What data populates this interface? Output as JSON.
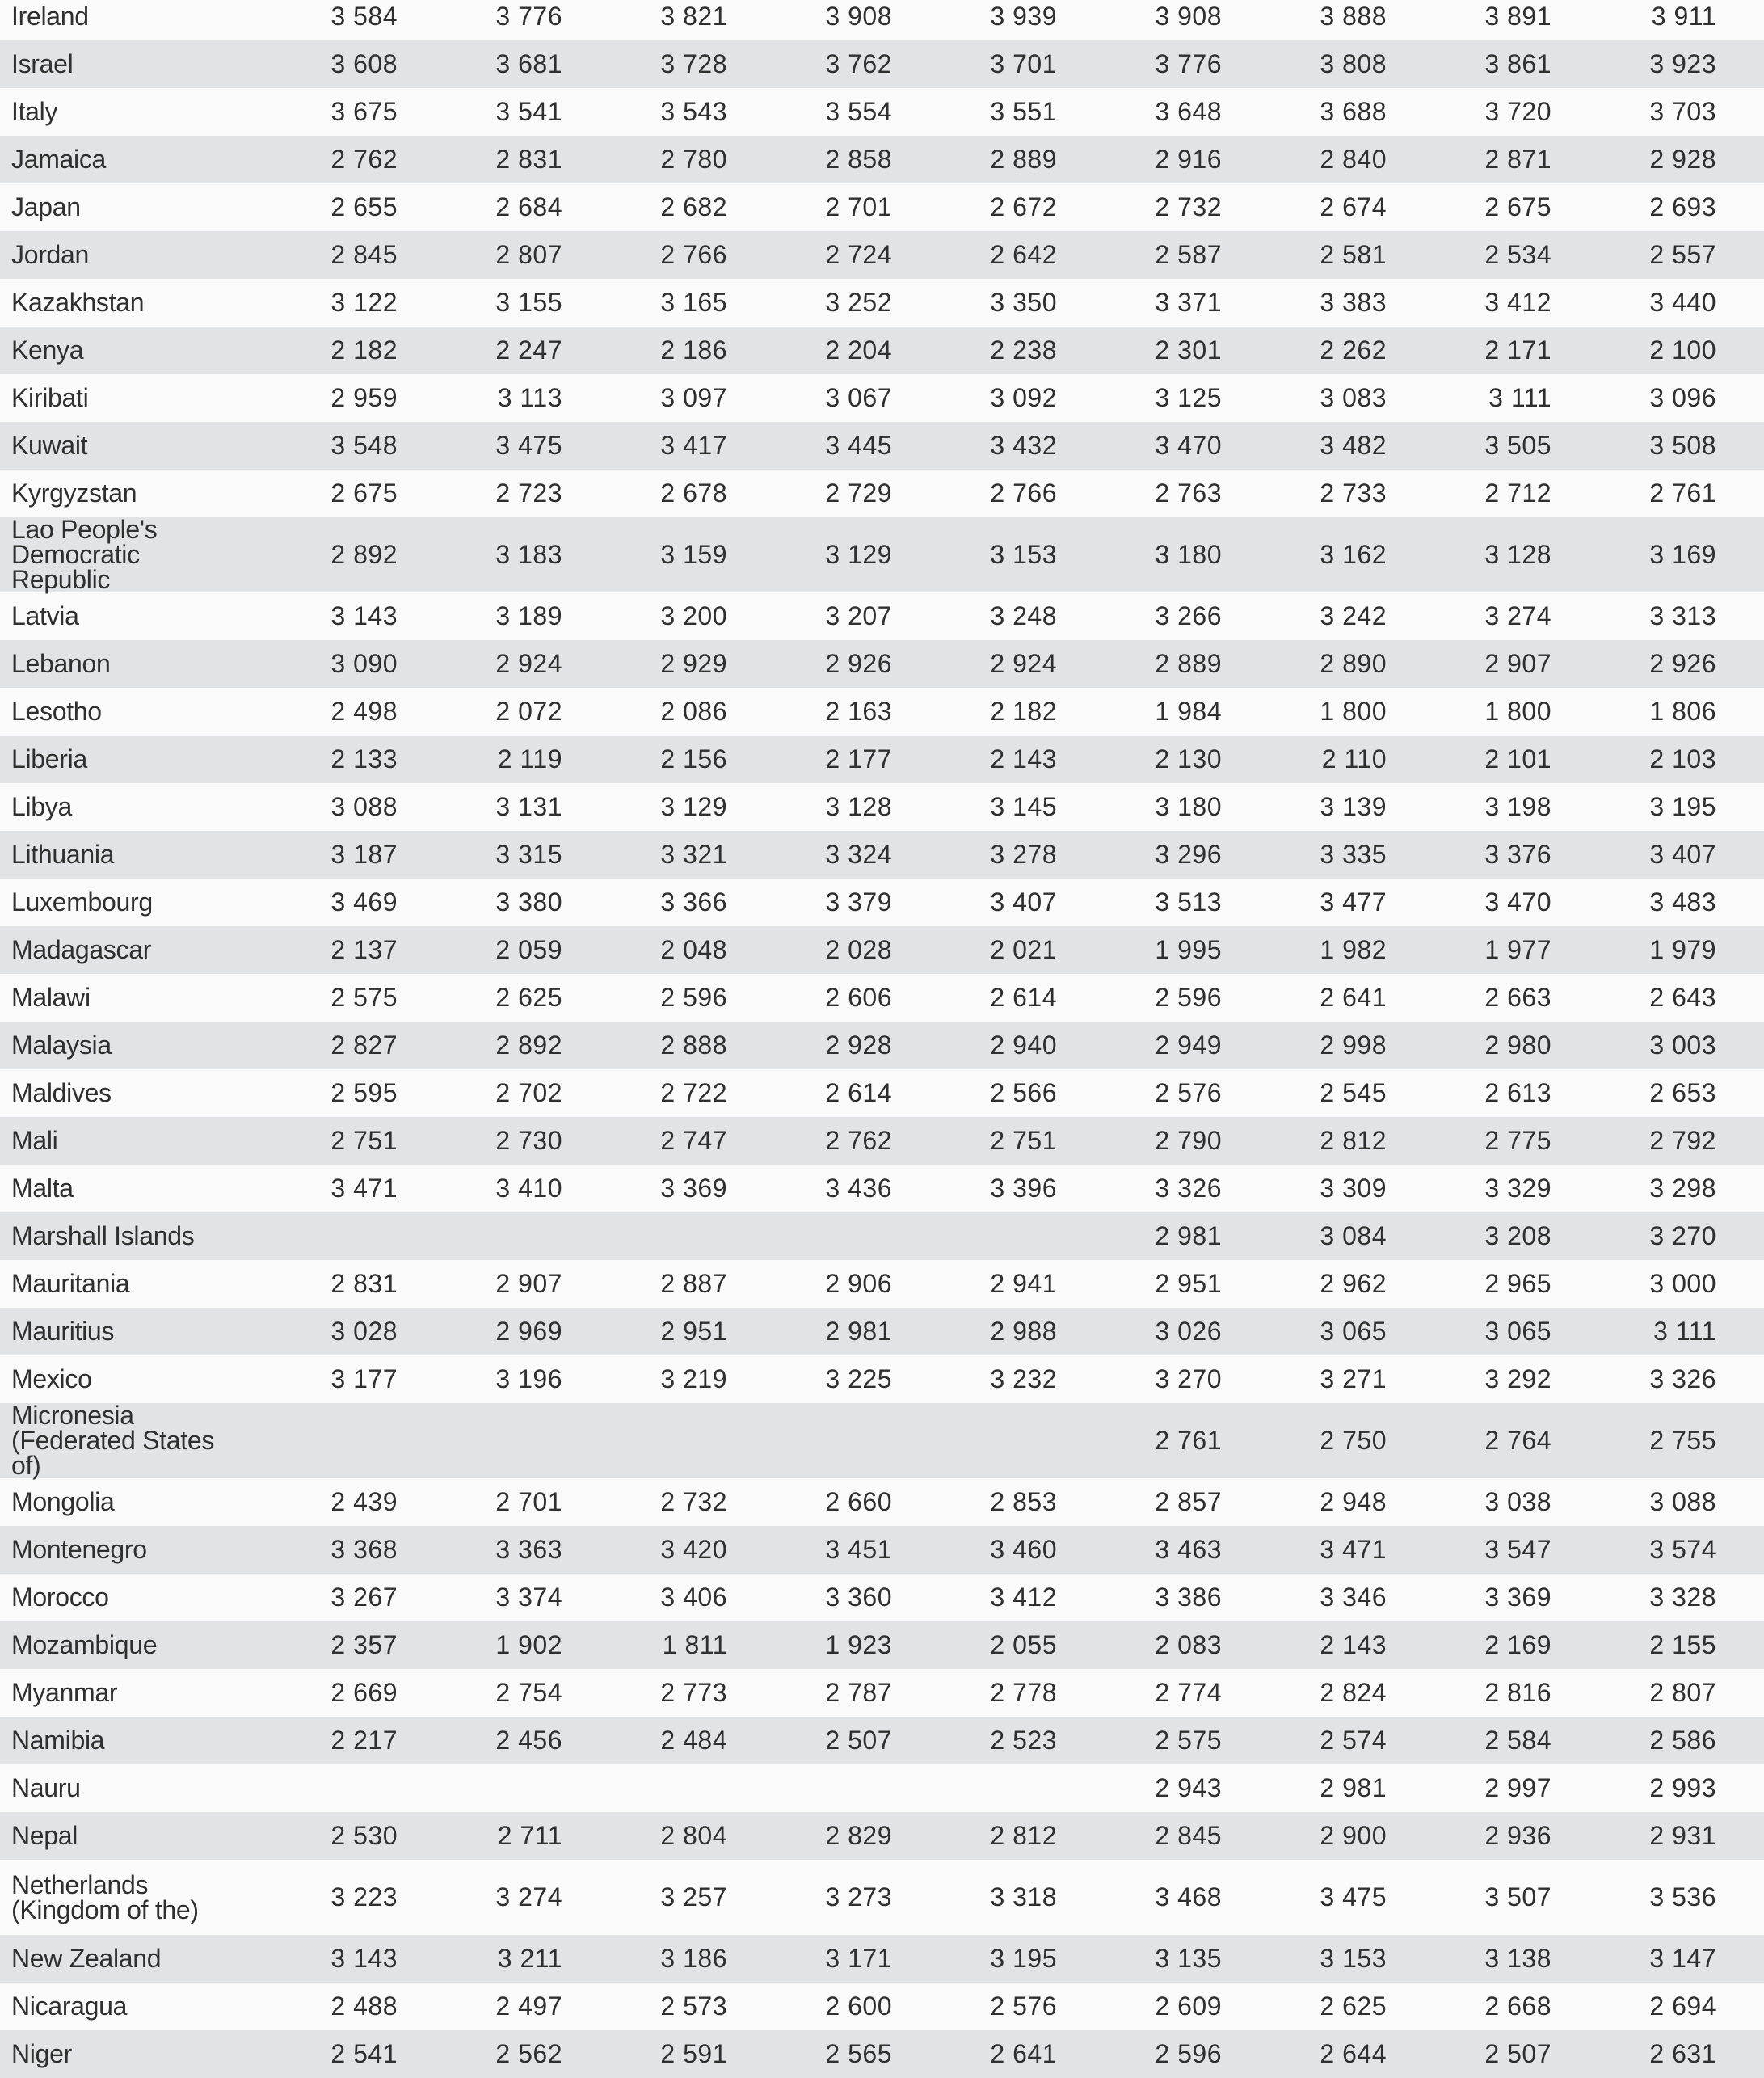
{
  "rows": [
    {
      "name": "Ireland",
      "values": [
        "3 584",
        "3 776",
        "3 821",
        "3 908",
        "3 939",
        "3 908",
        "3 888",
        "3 891",
        "3 911"
      ]
    },
    {
      "name": "Israel",
      "values": [
        "3 608",
        "3 681",
        "3 728",
        "3 762",
        "3 701",
        "3 776",
        "3 808",
        "3 861",
        "3 923"
      ]
    },
    {
      "name": "Italy",
      "values": [
        "3 675",
        "3 541",
        "3 543",
        "3 554",
        "3 551",
        "3 648",
        "3 688",
        "3 720",
        "3 703"
      ]
    },
    {
      "name": "Jamaica",
      "values": [
        "2 762",
        "2 831",
        "2 780",
        "2 858",
        "2 889",
        "2 916",
        "2 840",
        "2 871",
        "2 928"
      ]
    },
    {
      "name": "Japan",
      "values": [
        "2 655",
        "2 684",
        "2 682",
        "2 701",
        "2 672",
        "2 732",
        "2 674",
        "2 675",
        "2 693"
      ]
    },
    {
      "name": "Jordan",
      "values": [
        "2 845",
        "2 807",
        "2 766",
        "2 724",
        "2 642",
        "2 587",
        "2 581",
        "2 534",
        "2 557"
      ]
    },
    {
      "name": "Kazakhstan",
      "values": [
        "3 122",
        "3 155",
        "3 165",
        "3 252",
        "3 350",
        "3 371",
        "3 383",
        "3 412",
        "3 440"
      ]
    },
    {
      "name": "Kenya",
      "values": [
        "2 182",
        "2 247",
        "2 186",
        "2 204",
        "2 238",
        "2 301",
        "2 262",
        "2 171",
        "2 100"
      ]
    },
    {
      "name": "Kiribati",
      "values": [
        "2 959",
        "3 113",
        "3 097",
        "3 067",
        "3 092",
        "3 125",
        "3 083",
        "3 111",
        "3 096"
      ]
    },
    {
      "name": "Kuwait",
      "values": [
        "3 548",
        "3 475",
        "3 417",
        "3 445",
        "3 432",
        "3 470",
        "3 482",
        "3 505",
        "3 508"
      ]
    },
    {
      "name": "Kyrgyzstan",
      "values": [
        "2 675",
        "2 723",
        "2 678",
        "2 729",
        "2 766",
        "2 763",
        "2 733",
        "2 712",
        "2 761"
      ]
    },
    {
      "name": "Lao People's Democratic Republic",
      "tall": true,
      "values": [
        "2 892",
        "3 183",
        "3 159",
        "3 129",
        "3 153",
        "3 180",
        "3 162",
        "3 128",
        "3 169"
      ]
    },
    {
      "name": "Latvia",
      "values": [
        "3 143",
        "3 189",
        "3 200",
        "3 207",
        "3 248",
        "3 266",
        "3 242",
        "3 274",
        "3 313"
      ]
    },
    {
      "name": "Lebanon",
      "values": [
        "3 090",
        "2 924",
        "2 929",
        "2 926",
        "2 924",
        "2 889",
        "2 890",
        "2 907",
        "2 926"
      ]
    },
    {
      "name": "Lesotho",
      "values": [
        "2 498",
        "2 072",
        "2 086",
        "2 163",
        "2 182",
        "1 984",
        "1 800",
        "1 800",
        "1 806"
      ]
    },
    {
      "name": "Liberia",
      "values": [
        "2 133",
        "2 119",
        "2 156",
        "2 177",
        "2 143",
        "2 130",
        "2 110",
        "2 101",
        "2 103"
      ]
    },
    {
      "name": "Libya",
      "values": [
        "3 088",
        "3 131",
        "3 129",
        "3 128",
        "3 145",
        "3 180",
        "3 139",
        "3 198",
        "3 195"
      ]
    },
    {
      "name": "Lithuania",
      "values": [
        "3 187",
        "3 315",
        "3 321",
        "3 324",
        "3 278",
        "3 296",
        "3 335",
        "3 376",
        "3 407"
      ]
    },
    {
      "name": "Luxembourg",
      "values": [
        "3 469",
        "3 380",
        "3 366",
        "3 379",
        "3 407",
        "3 513",
        "3 477",
        "3 470",
        "3 483"
      ]
    },
    {
      "name": "Madagascar",
      "values": [
        "2 137",
        "2 059",
        "2 048",
        "2 028",
        "2 021",
        "1 995",
        "1 982",
        "1 977",
        "1 979"
      ]
    },
    {
      "name": "Malawi",
      "values": [
        "2 575",
        "2 625",
        "2 596",
        "2 606",
        "2 614",
        "2 596",
        "2 641",
        "2 663",
        "2 643"
      ]
    },
    {
      "name": "Malaysia",
      "values": [
        "2 827",
        "2 892",
        "2 888",
        "2 928",
        "2 940",
        "2 949",
        "2 998",
        "2 980",
        "3 003"
      ]
    },
    {
      "name": "Maldives",
      "values": [
        "2 595",
        "2 702",
        "2 722",
        "2 614",
        "2 566",
        "2 576",
        "2 545",
        "2 613",
        "2 653"
      ]
    },
    {
      "name": "Mali",
      "values": [
        "2 751",
        "2 730",
        "2 747",
        "2 762",
        "2 751",
        "2 790",
        "2 812",
        "2 775",
        "2 792"
      ]
    },
    {
      "name": "Malta",
      "values": [
        "3 471",
        "3 410",
        "3 369",
        "3 436",
        "3 396",
        "3 326",
        "3 309",
        "3 329",
        "3 298"
      ]
    },
    {
      "name": "Marshall Islands",
      "values": [
        "",
        "",
        "",
        "",
        "",
        "2 981",
        "3 084",
        "3 208",
        "3 270"
      ]
    },
    {
      "name": "Mauritania",
      "values": [
        "2 831",
        "2 907",
        "2 887",
        "2 906",
        "2 941",
        "2 951",
        "2 962",
        "2 965",
        "3 000"
      ]
    },
    {
      "name": "Mauritius",
      "values": [
        "3 028",
        "2 969",
        "2 951",
        "2 981",
        "2 988",
        "3 026",
        "3 065",
        "3 065",
        "3 111"
      ]
    },
    {
      "name": "Mexico",
      "values": [
        "3 177",
        "3 196",
        "3 219",
        "3 225",
        "3 232",
        "3 270",
        "3 271",
        "3 292",
        "3 326"
      ]
    },
    {
      "name": "Micronesia (Federated States of)",
      "tall": true,
      "values": [
        "",
        "",
        "",
        "",
        "",
        "2 761",
        "2 750",
        "2 764",
        "2 755"
      ]
    },
    {
      "name": "Mongolia",
      "values": [
        "2 439",
        "2 701",
        "2 732",
        "2 660",
        "2 853",
        "2 857",
        "2 948",
        "3 038",
        "3 088"
      ]
    },
    {
      "name": "Montenegro",
      "values": [
        "3 368",
        "3 363",
        "3 420",
        "3 451",
        "3 460",
        "3 463",
        "3 471",
        "3 547",
        "3 574"
      ]
    },
    {
      "name": "Morocco",
      "values": [
        "3 267",
        "3 374",
        "3 406",
        "3 360",
        "3 412",
        "3 386",
        "3 346",
        "3 369",
        "3 328"
      ]
    },
    {
      "name": "Mozambique",
      "values": [
        "2 357",
        "1 902",
        "1 811",
        "1 923",
        "2 055",
        "2 083",
        "2 143",
        "2 169",
        "2 155"
      ]
    },
    {
      "name": "Myanmar",
      "values": [
        "2 669",
        "2 754",
        "2 773",
        "2 787",
        "2 778",
        "2 774",
        "2 824",
        "2 816",
        "2 807"
      ]
    },
    {
      "name": "Namibia",
      "values": [
        "2 217",
        "2 456",
        "2 484",
        "2 507",
        "2 523",
        "2 575",
        "2 574",
        "2 584",
        "2 586"
      ]
    },
    {
      "name": "Nauru",
      "values": [
        "",
        "",
        "",
        "",
        "",
        "2 943",
        "2 981",
        "2 997",
        "2 993"
      ]
    },
    {
      "name": "Nepal",
      "values": [
        "2 530",
        "2 711",
        "2 804",
        "2 829",
        "2 812",
        "2 845",
        "2 900",
        "2 936",
        "2 931"
      ]
    },
    {
      "name": "Netherlands (Kingdom of the)",
      "tall": true,
      "values": [
        "3 223",
        "3 274",
        "3 257",
        "3 273",
        "3 318",
        "3 468",
        "3 475",
        "3 507",
        "3 536"
      ]
    },
    {
      "name": "New Zealand",
      "values": [
        "3 143",
        "3 211",
        "3 186",
        "3 171",
        "3 195",
        "3 135",
        "3 153",
        "3 138",
        "3 147"
      ]
    },
    {
      "name": "Nicaragua",
      "values": [
        "2 488",
        "2 497",
        "2 573",
        "2 600",
        "2 576",
        "2 609",
        "2 625",
        "2 668",
        "2 694"
      ]
    },
    {
      "name": "Niger",
      "values": [
        "2 541",
        "2 562",
        "2 591",
        "2 565",
        "2 641",
        "2 596",
        "2 644",
        "2 507",
        "2 631"
      ]
    }
  ]
}
